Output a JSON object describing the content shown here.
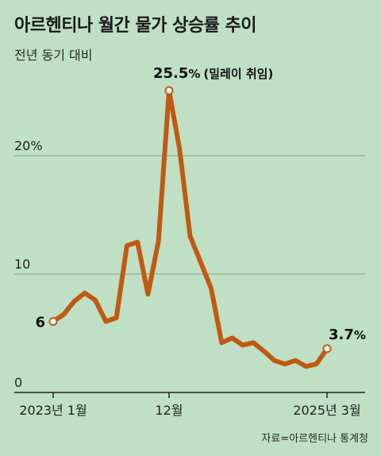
{
  "title": "아르헨티나 월간 물가 상승률 추이",
  "subtitle": "전년 동기 대비",
  "source": "자료=아르헨티나 통계청",
  "colors": {
    "background": "#bfe0c4",
    "line": "#c05a12",
    "grid": "#8f9f92",
    "axis": "#222222"
  },
  "chart_data": {
    "type": "line",
    "title": "아르헨티나 월간 물가 상승률 추이",
    "subtitle": "전년 동기 대비",
    "x": [
      "2023-01",
      "2023-02",
      "2023-03",
      "2023-04",
      "2023-05",
      "2023-06",
      "2023-07",
      "2023-08",
      "2023-09",
      "2023-10",
      "2023-11",
      "2023-12",
      "2024-01",
      "2024-02",
      "2024-03",
      "2024-04",
      "2024-05",
      "2024-06",
      "2024-07",
      "2024-08",
      "2024-09",
      "2024-10",
      "2024-11",
      "2024-12",
      "2025-01",
      "2025-02",
      "2025-03"
    ],
    "series": [
      {
        "values": [
          6.0,
          6.6,
          7.7,
          8.4,
          7.8,
          6.0,
          6.3,
          12.4,
          12.7,
          8.3,
          12.8,
          25.5,
          20.6,
          13.2,
          11.0,
          8.8,
          4.2,
          4.6,
          4.0,
          4.2,
          3.5,
          2.7,
          2.4,
          2.7,
          2.2,
          2.4,
          3.7
        ]
      }
    ],
    "ylim": [
      0,
      30
    ],
    "yticks": [
      {
        "value": 0,
        "label": "0"
      },
      {
        "value": 10,
        "label": "10"
      },
      {
        "value": 20,
        "label": "20%"
      }
    ],
    "xticks": [
      {
        "at": "2023-01",
        "label": "2023년 1월"
      },
      {
        "at": "2023-12",
        "label": "12월"
      },
      {
        "at": "2025-03",
        "label": "2025년 3월"
      }
    ],
    "annotations": {
      "start": {
        "value_label": "6"
      },
      "peak": {
        "value_label": "25.5",
        "unit": "%",
        "note": "(밀레이 취임)"
      },
      "end": {
        "value_label": "3.7",
        "unit": "%"
      }
    },
    "grid": true
  }
}
